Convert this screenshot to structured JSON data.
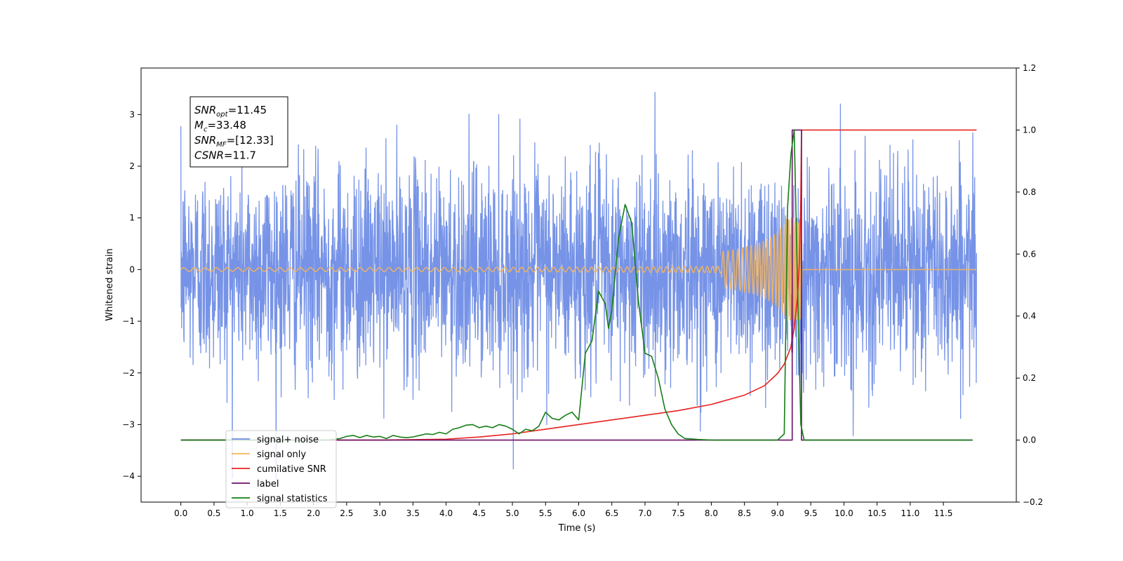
{
  "chart_data": {
    "type": "line",
    "xlabel": "Time (s)",
    "ylabel": "Whitened strain",
    "xlim": [
      -0.6,
      12.6
    ],
    "ylim_left": [
      -4.5,
      3.9
    ],
    "ylim_right": [
      -0.2,
      1.2
    ],
    "x_ticks": [
      0.0,
      0.5,
      1.0,
      1.5,
      2.0,
      2.5,
      3.0,
      3.5,
      4.0,
      4.5,
      5.0,
      5.5,
      6.0,
      6.5,
      7.0,
      7.5,
      8.0,
      8.5,
      9.0,
      9.5,
      10.0,
      10.5,
      11.0,
      11.5
    ],
    "x_tick_labels": [
      "0.0",
      "0.5",
      "1.0",
      "1.5",
      "2.0",
      "2.5",
      "3.0",
      "3.5",
      "4.0",
      "4.5",
      "5.0",
      "5.5",
      "6.0",
      "6.5",
      "7.0",
      "7.5",
      "8.0",
      "8.5",
      "9.0",
      "9.5",
      "10.0",
      "10.5",
      "11.0",
      "11.5"
    ],
    "y_left_ticks": [
      -4,
      -3,
      -2,
      -1,
      0,
      1,
      2,
      3
    ],
    "y_left_tick_labels": [
      "−4",
      "−3",
      "−2",
      "−1",
      "0",
      "1",
      "2",
      "3"
    ],
    "y_right_ticks": [
      -0.2,
      0.0,
      0.2,
      0.4,
      0.6,
      0.8,
      1.0,
      1.2
    ],
    "y_right_tick_labels": [
      "−0.2",
      "0.0",
      "0.2",
      "0.4",
      "0.6",
      "0.8",
      "1.0",
      "1.2"
    ],
    "info_box": {
      "lines": [
        {
          "base": "SNR",
          "sub": "opt",
          "value": "=11.45"
        },
        {
          "base": "M",
          "sub": "c",
          "value": "=33.48"
        },
        {
          "base": "SNR",
          "sub": "MF",
          "value": "=[12.33]"
        },
        {
          "base": "CSNR",
          "sub": "",
          "value": "=11.7"
        }
      ]
    },
    "legend": {
      "placement": "lower-left",
      "entries": [
        {
          "label": "signal+ noise",
          "color": "#6f8de6"
        },
        {
          "label": "signal only",
          "color": "#f5b45c"
        },
        {
          "label": "cumilative SNR",
          "color": "#e8221e"
        },
        {
          "label": "label",
          "color": "#6c0f6c"
        },
        {
          "label": "signal statistics",
          "color": "#167d16"
        }
      ]
    },
    "series": [
      {
        "name": "signal+ noise",
        "axis": "left",
        "color": "#6f8de6",
        "kind": "noise",
        "x_range": [
          0.0,
          12.0
        ],
        "typical_amplitude": 2.0,
        "peak_max": 3.5,
        "peak_min": -4.1
      },
      {
        "name": "signal only",
        "axis": "left",
        "color": "#f5b45c",
        "kind": "chirp",
        "x_range": [
          0.0,
          9.35
        ],
        "merger_time": 9.35,
        "peak_amplitude": 1.0
      },
      {
        "name": "cumilative SNR",
        "axis": "right",
        "color": "#e8221e",
        "x": [
          0.0,
          2.0,
          3.0,
          4.0,
          4.5,
          5.0,
          5.5,
          6.0,
          6.5,
          7.0,
          7.5,
          8.0,
          8.5,
          8.8,
          9.0,
          9.1,
          9.2,
          9.25,
          9.3,
          9.33,
          9.35,
          9.36,
          12.0
        ],
        "y": [
          0.0,
          0.0,
          0.0,
          0.003,
          0.01,
          0.02,
          0.035,
          0.05,
          0.065,
          0.08,
          0.095,
          0.115,
          0.145,
          0.175,
          0.215,
          0.245,
          0.3,
          0.36,
          0.46,
          0.58,
          0.78,
          1.0,
          1.0
        ]
      },
      {
        "name": "label",
        "axis": "right",
        "color": "#6c0f6c",
        "x": [
          0.0,
          9.22,
          9.22,
          9.36,
          9.36,
          11.94
        ],
        "y": [
          0.0,
          0.0,
          1.0,
          1.0,
          0.0,
          0.0
        ]
      },
      {
        "name": "signal statistics",
        "axis": "right",
        "color": "#167d16",
        "x": [
          0.0,
          2.2,
          2.4,
          2.5,
          2.6,
          2.7,
          2.8,
          2.9,
          3.0,
          3.1,
          3.2,
          3.3,
          3.4,
          3.5,
          3.6,
          3.7,
          3.8,
          3.9,
          4.0,
          4.1,
          4.2,
          4.3,
          4.4,
          4.5,
          4.6,
          4.7,
          4.8,
          4.9,
          5.0,
          5.1,
          5.2,
          5.3,
          5.4,
          5.5,
          5.6,
          5.7,
          5.8,
          5.9,
          6.0,
          6.1,
          6.2,
          6.3,
          6.4,
          6.45,
          6.5,
          6.6,
          6.7,
          6.8,
          6.9,
          7.0,
          7.1,
          7.2,
          7.3,
          7.4,
          7.5,
          7.6,
          7.8,
          8.0,
          8.5,
          9.0,
          9.1,
          9.15,
          9.2,
          9.25,
          9.3,
          9.35,
          9.4,
          9.45,
          11.94
        ],
        "y": [
          0.0,
          0.0,
          0.005,
          0.012,
          0.015,
          0.008,
          0.015,
          0.01,
          0.012,
          0.005,
          0.015,
          0.01,
          0.008,
          0.01,
          0.015,
          0.02,
          0.018,
          0.025,
          0.02,
          0.035,
          0.04,
          0.048,
          0.05,
          0.04,
          0.045,
          0.04,
          0.05,
          0.045,
          0.035,
          0.02,
          0.035,
          0.03,
          0.045,
          0.09,
          0.07,
          0.065,
          0.08,
          0.09,
          0.065,
          0.28,
          0.32,
          0.48,
          0.44,
          0.36,
          0.42,
          0.65,
          0.76,
          0.7,
          0.45,
          0.28,
          0.27,
          0.2,
          0.1,
          0.05,
          0.02,
          0.005,
          0.002,
          0.0,
          0.0,
          0.0,
          0.02,
          0.75,
          0.92,
          1.0,
          0.5,
          0.05,
          0.0,
          0.0,
          0.0
        ]
      }
    ]
  }
}
